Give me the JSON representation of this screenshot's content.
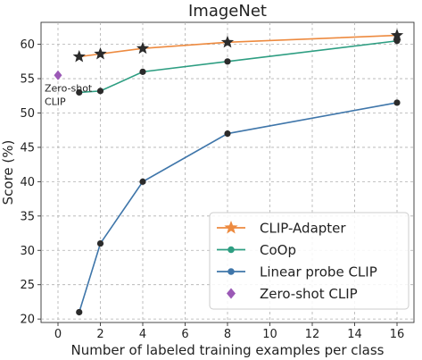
{
  "chart_data": {
    "type": "line",
    "title": "ImageNet",
    "xlabel": "Number of labeled training examples per class",
    "ylabel": "Score (%)",
    "xlim": [
      -0.8,
      16.8
    ],
    "ylim": [
      19.5,
      63.2
    ],
    "xticks": [
      0,
      2,
      4,
      6,
      8,
      10,
      12,
      14,
      16
    ],
    "yticks": [
      20,
      25,
      30,
      35,
      40,
      45,
      50,
      55,
      60
    ],
    "grid": true,
    "legend_position": "bottom-right",
    "series": [
      {
        "name": "CLIP-Adapter",
        "color": "#ED8A3F",
        "marker": "star",
        "marker_color": "#2b2b2b",
        "x": [
          1,
          2,
          4,
          8,
          16
        ],
        "y": [
          58.2,
          58.6,
          59.4,
          60.3,
          61.3
        ]
      },
      {
        "name": "CoOp",
        "color": "#2E9E82",
        "marker": "circle",
        "marker_color": "#2b2b2b",
        "x": [
          1,
          2,
          4,
          8,
          16
        ],
        "y": [
          53.0,
          53.2,
          56.0,
          57.5,
          60.5
        ]
      },
      {
        "name": "Linear probe CLIP",
        "color": "#3F76AA",
        "marker": "circle",
        "marker_color": "#2b2b2b",
        "x": [
          1,
          2,
          4,
          8,
          16
        ],
        "y": [
          21.0,
          31.0,
          40.0,
          47.0,
          51.5
        ]
      },
      {
        "name": "Zero-shot CLIP",
        "color": "#9B59B6",
        "marker": "diamond",
        "marker_color": "#9B59B6",
        "x": [
          0
        ],
        "y": [
          55.5
        ]
      }
    ],
    "annotations": [
      {
        "text_lines": [
          "Zero-shot",
          "CLIP"
        ],
        "x": 0,
        "y": 53.1
      }
    ]
  }
}
